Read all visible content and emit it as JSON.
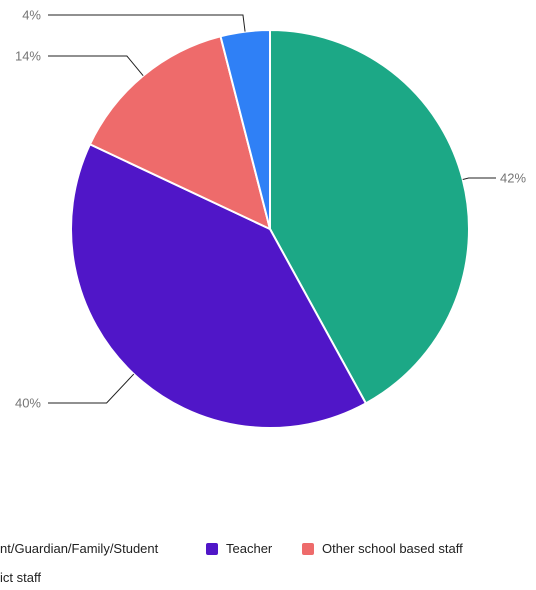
{
  "chart_data": {
    "type": "pie",
    "title": "",
    "series": [
      {
        "name": "Parent/Guardian/Family/Student",
        "value": 42,
        "label": "42%",
        "color": "#1ca886"
      },
      {
        "name": "Teacher",
        "value": 40,
        "label": "40%",
        "color": "#5016c8"
      },
      {
        "name": "Other school based staff",
        "value": 14,
        "label": "14%",
        "color": "#ee6b6b"
      },
      {
        "name": "District staff",
        "value": 4,
        "label": "4%",
        "color": "#2f80f6"
      }
    ],
    "legend": {
      "placement": "bottom",
      "row1": [
        {
          "text": "nt/Guardian/Family/Student",
          "color": "#1ca886"
        },
        {
          "text": "Teacher",
          "color": "#5016c8"
        },
        {
          "text": "Other school based staff",
          "color": "#ee6b6b"
        }
      ],
      "row2": [
        {
          "text": "ict staff",
          "color": "#2f80f6"
        }
      ]
    }
  }
}
